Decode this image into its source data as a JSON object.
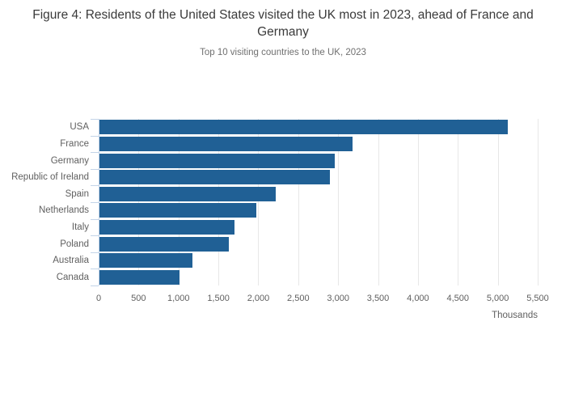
{
  "chart_data": {
    "type": "bar",
    "orientation": "horizontal",
    "title": "Figure 4: Residents of the United States visited the UK most in 2023, ahead of France and Germany",
    "subtitle": "Top 10 visiting countries to the UK, 2023",
    "categories": [
      "USA",
      "France",
      "Germany",
      "Republic of Ireland",
      "Spain",
      "Netherlands",
      "Italy",
      "Poland",
      "Australia",
      "Canada"
    ],
    "values": [
      5120,
      3170,
      2950,
      2890,
      2210,
      1960,
      1690,
      1620,
      1160,
      1000
    ],
    "xlabel": "Thousands",
    "ylabel": "",
    "xlim": [
      0,
      5500
    ],
    "xticks": [
      0,
      500,
      1000,
      1500,
      2000,
      2500,
      3000,
      3500,
      4000,
      4500,
      5000,
      5500
    ],
    "xtick_labels": [
      "0",
      "500",
      "1,000",
      "1,500",
      "2,000",
      "2,500",
      "3,000",
      "3,500",
      "4,000",
      "4,500",
      "5,000",
      "5,500"
    ],
    "grid": true,
    "legend": false,
    "colors": {
      "bar": "#206095",
      "gridline": "#e7e7e7",
      "axis": "#c3d4e8",
      "title_text": "#3a3a3a",
      "muted_text": "#707070",
      "tick_text": "#5f5f5f"
    }
  }
}
